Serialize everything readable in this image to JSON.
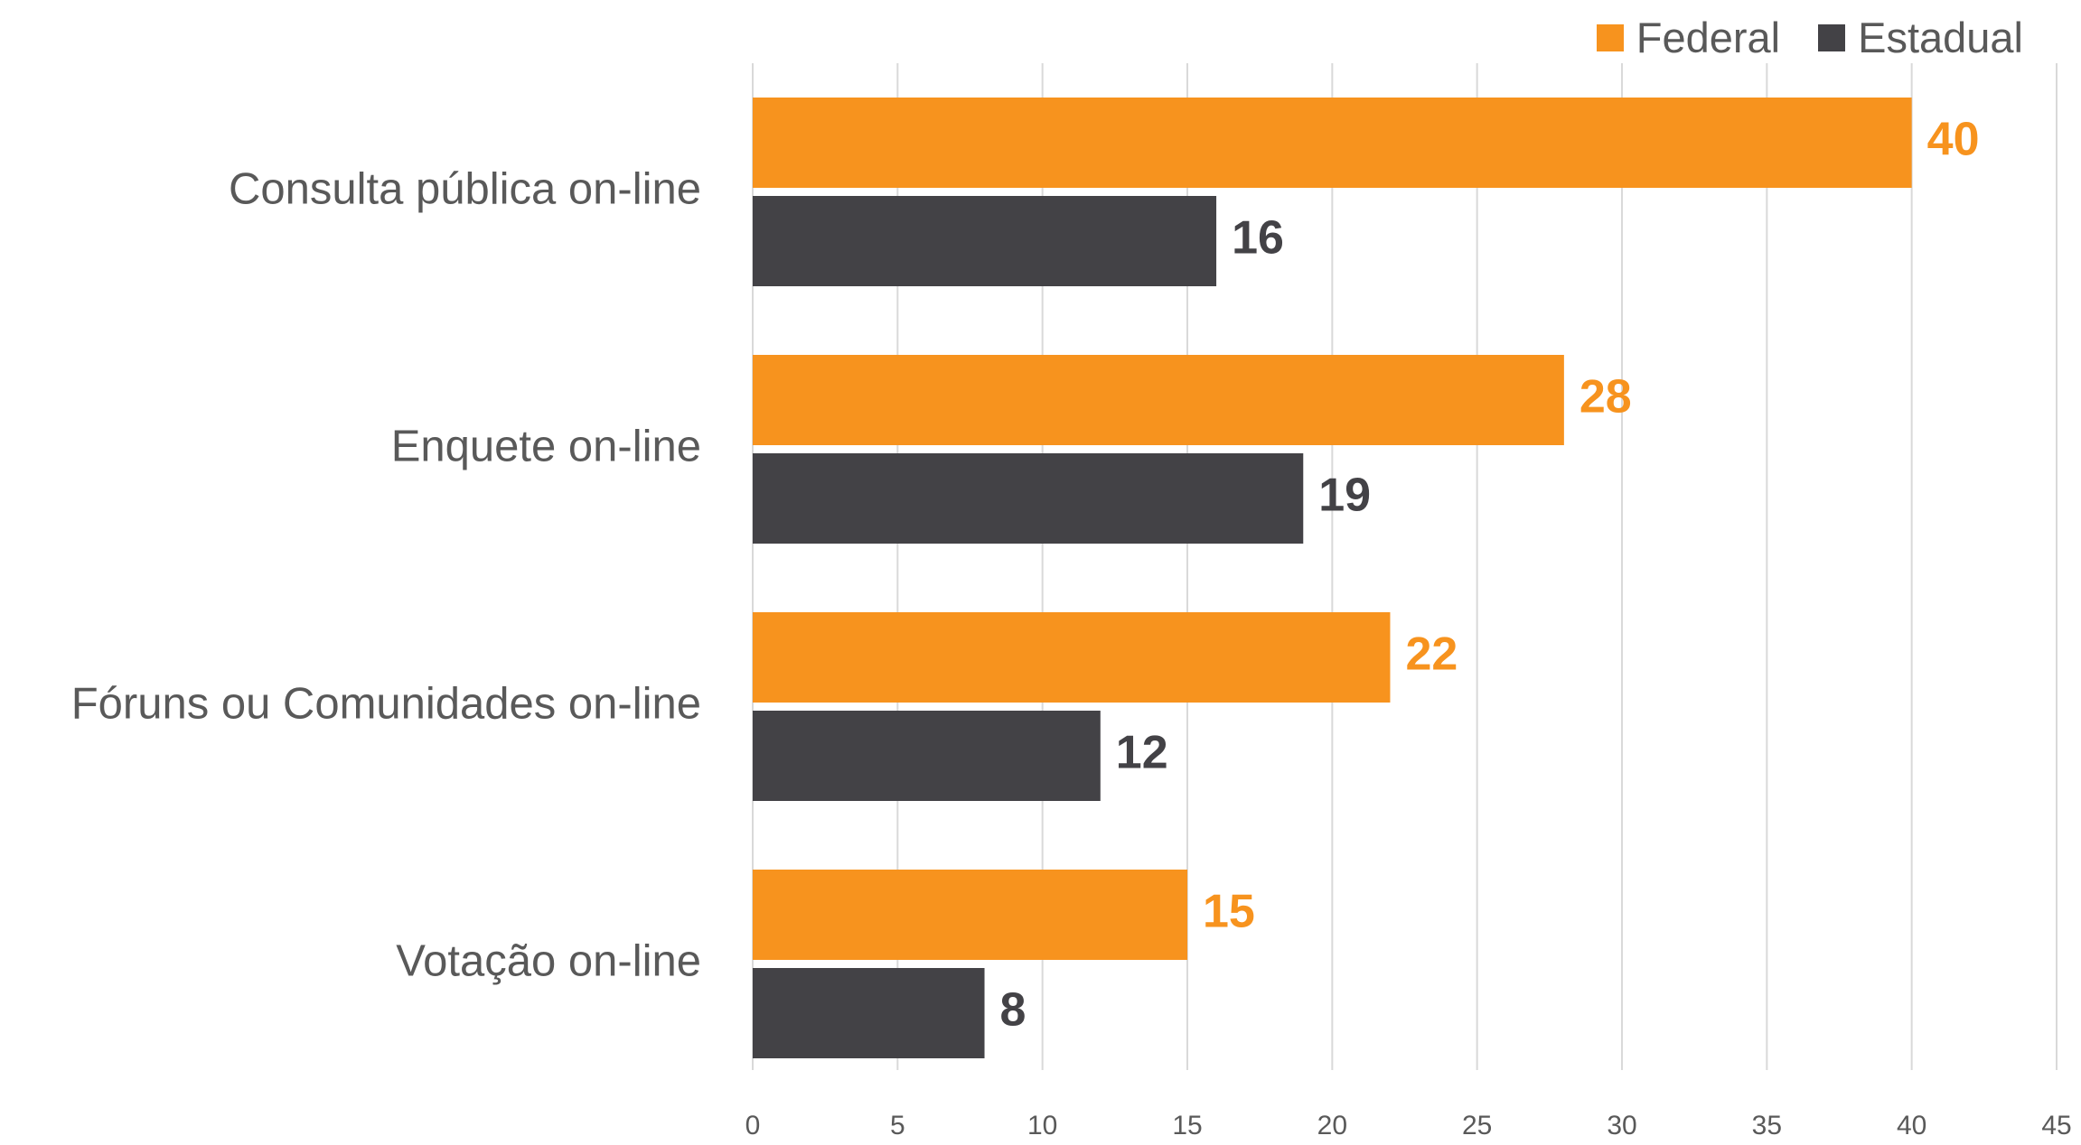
{
  "chart_data": {
    "type": "bar",
    "orientation": "horizontal",
    "categories": [
      "Consulta pública on-line",
      "Enquete on-line",
      "Fóruns ou Comunidades on-line",
      "Votação on-line"
    ],
    "series": [
      {
        "name": "Federal",
        "color": "#F7931E",
        "values": [
          40,
          28,
          22,
          15
        ]
      },
      {
        "name": "Estadual",
        "color": "#434246",
        "values": [
          16,
          19,
          12,
          8
        ]
      }
    ],
    "xlim": [
      0,
      45
    ],
    "xticks": [
      0,
      5,
      10,
      15,
      20,
      25,
      30,
      35,
      40,
      45
    ],
    "grid": "vertical",
    "legend": "top-right",
    "data_labels": true
  }
}
